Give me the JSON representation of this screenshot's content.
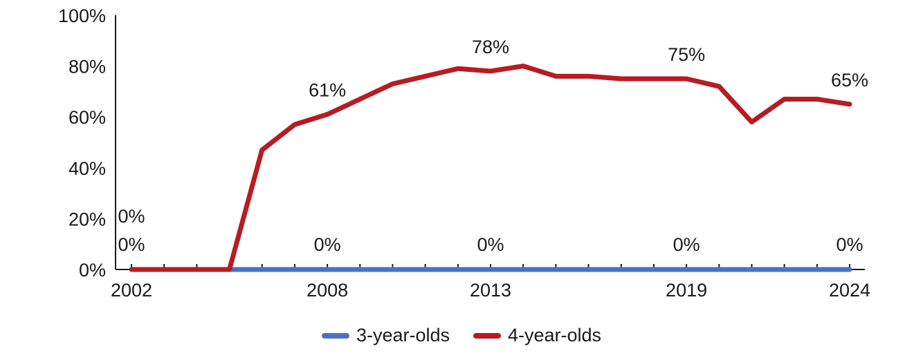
{
  "chart_data": {
    "type": "line",
    "x": [
      2002,
      2003,
      2004,
      2005,
      2006,
      2007,
      2008,
      2009,
      2010,
      2011,
      2012,
      2013,
      2014,
      2015,
      2016,
      2017,
      2018,
      2019,
      2020,
      2021,
      2022,
      2023,
      2024
    ],
    "x_tick_labels": [
      "2002",
      "2008",
      "2013",
      "2019",
      "2024"
    ],
    "y_tick_labels": [
      "0%",
      "20%",
      "40%",
      "60%",
      "80%",
      "100%"
    ],
    "ylim": [
      0,
      100
    ],
    "y_unit": "%",
    "series": [
      {
        "name": "3-year-olds",
        "color": "#4a72c4",
        "values": [
          0,
          0,
          0,
          0,
          0,
          0,
          0,
          0,
          0,
          0,
          0,
          0,
          0,
          0,
          0,
          0,
          0,
          0,
          0,
          0,
          0,
          0,
          0
        ],
        "data_labels": [
          {
            "x": 2002,
            "text": "0%"
          },
          {
            "x": 2008,
            "text": "0%"
          },
          {
            "x": 2013,
            "text": "0%"
          },
          {
            "x": 2019,
            "text": "0%"
          },
          {
            "x": 2024,
            "text": "0%"
          }
        ]
      },
      {
        "name": "4-year-olds",
        "color": "#b71c22",
        "values": [
          0,
          0,
          0,
          0,
          47,
          57,
          61,
          67,
          73,
          76,
          79,
          78,
          80,
          76,
          76,
          75,
          75,
          75,
          72,
          58,
          67,
          67,
          65
        ],
        "data_labels": [
          {
            "x": 2002,
            "text": "0%"
          },
          {
            "x": 2008,
            "text": "61%"
          },
          {
            "x": 2013,
            "text": "78%"
          },
          {
            "x": 2019,
            "text": "75%"
          },
          {
            "x": 2024,
            "text": "65%"
          }
        ]
      }
    ],
    "legend_position": "bottom",
    "grid": false
  }
}
